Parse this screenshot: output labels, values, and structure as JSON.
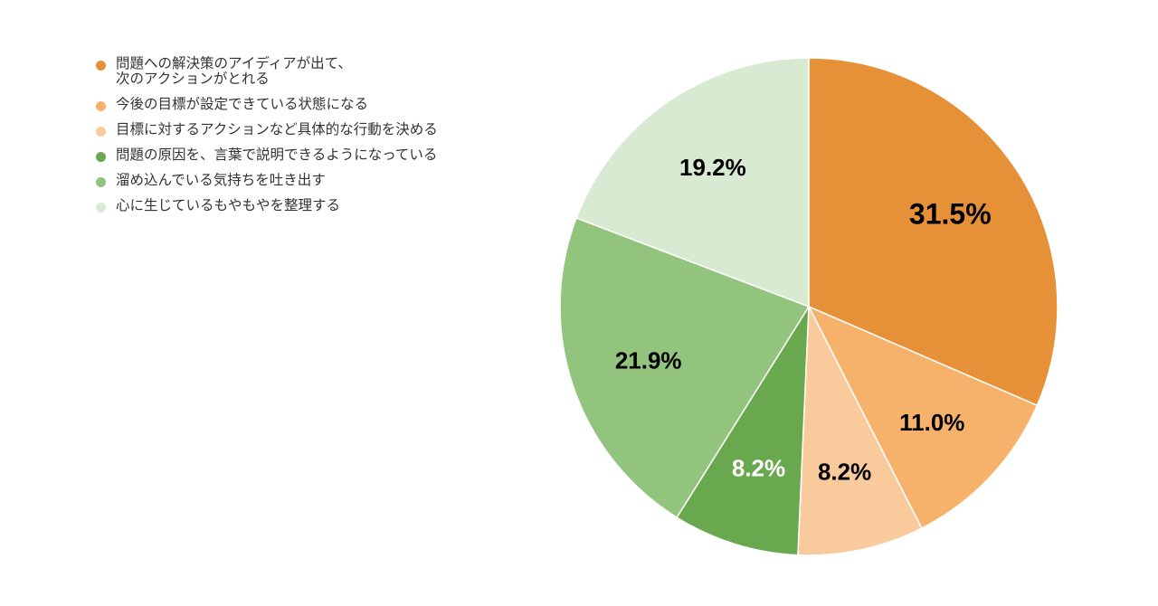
{
  "chart_data": {
    "type": "pie",
    "title": "",
    "legend_position": "top-left",
    "start_angle_deg": 0,
    "direction": "clockwise",
    "slices": [
      {
        "label": "問題への解決策のアイディアが出て、\n次のアクションがとれる",
        "value": 31.5,
        "display": "31.5%",
        "color": "#E69138",
        "label_color": "#000000",
        "label_emphasis": "large"
      },
      {
        "label": "今後の目標が設定できている状態になる",
        "value": 11.0,
        "display": "11.0%",
        "color": "#F6B26B",
        "label_color": "#000000",
        "label_emphasis": "normal"
      },
      {
        "label": "目標に対するアクションなど具体的な行動を決める",
        "value": 8.2,
        "display": "8.2%",
        "color": "#F9CB9C",
        "label_color": "#000000",
        "label_emphasis": "normal"
      },
      {
        "label": "問題の原因を、言葉で説明できるようになっている",
        "value": 8.2,
        "display": "8.2%",
        "color": "#6AA84F",
        "label_color": "#ffffff",
        "label_emphasis": "normal"
      },
      {
        "label": "溜め込んでいる気持ちを吐き出す",
        "value": 21.9,
        "display": "21.9%",
        "color": "#93C47D",
        "label_color": "#000000",
        "label_emphasis": "normal"
      },
      {
        "label": "心に生じているもやもやを整理する",
        "value": 19.2,
        "display": "19.2%",
        "color": "#D9EAD3",
        "label_color": "#000000",
        "label_emphasis": "normal"
      }
    ]
  }
}
